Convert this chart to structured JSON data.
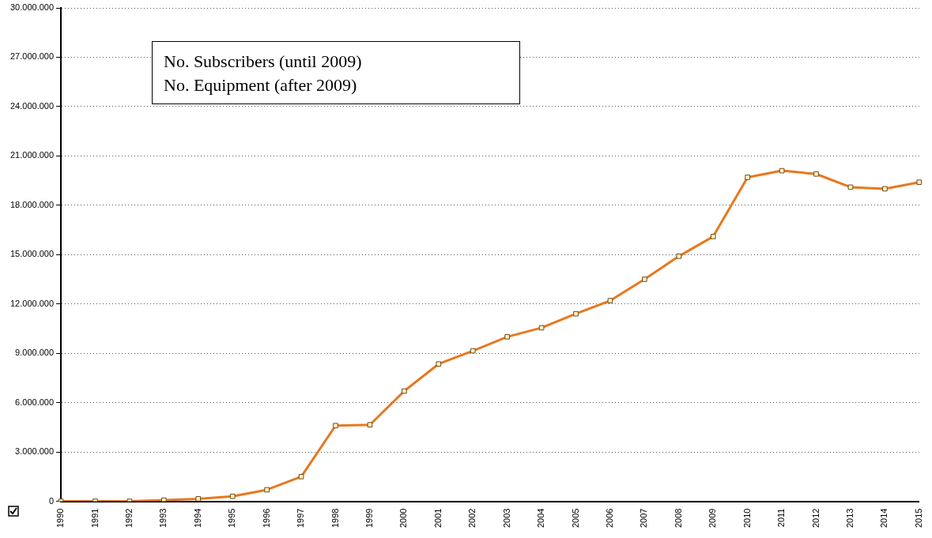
{
  "chart_data": {
    "type": "line",
    "categories": [
      "1990",
      "1991",
      "1992",
      "1993",
      "1994",
      "1995",
      "1996",
      "1997",
      "1998",
      "1999",
      "2000",
      "2001",
      "2002",
      "2003",
      "2004",
      "2005",
      "2006",
      "2007",
      "2008",
      "2009",
      "2010",
      "2011",
      "2012",
      "2013",
      "2014",
      "2015"
    ],
    "series": [
      {
        "color": "#e8781e",
        "values": [
          0,
          0,
          0,
          70000,
          150000,
          300000,
          700000,
          1500000,
          4600000,
          4650000,
          6700000,
          8350000,
          9150000,
          10000000,
          10550000,
          11400000,
          12200000,
          13500000,
          14900000,
          16100000,
          19700000,
          20100000,
          19900000,
          19100000,
          19000000,
          19400000
        ]
      }
    ],
    "ylim": [
      0,
      30000000
    ],
    "yticks": [
      {
        "value": 0,
        "label": "0"
      },
      {
        "value": 3000000,
        "label": "3.000.000"
      },
      {
        "value": 6000000,
        "label": "6.000.000"
      },
      {
        "value": 9000000,
        "label": "9.000.000"
      },
      {
        "value": 12000000,
        "label": "12.000.000"
      },
      {
        "value": 15000000,
        "label": "15.000.000"
      },
      {
        "value": 18000000,
        "label": "18.000.000"
      },
      {
        "value": 21000000,
        "label": "21.000.000"
      },
      {
        "value": 24000000,
        "label": "24.000.000"
      },
      {
        "value": 27000000,
        "label": "27.000.000"
      },
      {
        "value": 30000000,
        "label": "30.000.000"
      }
    ],
    "grid": "y",
    "marker": "square",
    "legend": false,
    "annotations": [
      "No. Subscribers (until 2009)",
      "No. Equipment (after 2009)"
    ]
  }
}
